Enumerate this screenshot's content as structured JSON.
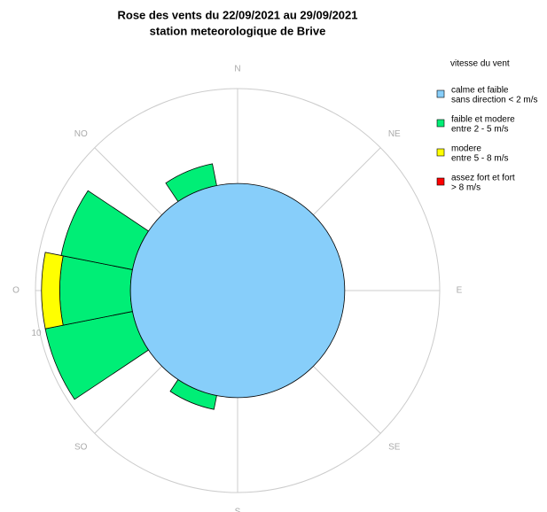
{
  "chart_data": {
    "type": "windrose",
    "title": "Rose des vents du 22/09/2021 au 29/09/2021",
    "subtitle": "station meteorologique de Brive",
    "legend_title": "vitesse du vent",
    "categories": [
      "N",
      null,
      "NE",
      null,
      "E",
      null,
      "SE",
      null,
      "S",
      null,
      "SO",
      null,
      "O",
      null,
      "NO",
      null
    ],
    "calm": {
      "name": [
        "calme et faible",
        "sans direction < 2 m/s"
      ],
      "color": "#87cefa",
      "value": 5.3
    },
    "series": [
      {
        "name": [
          "faible et modere",
          "entre 2 - 5 m/s"
        ],
        "color": "#00ee76",
        "values": [
          0,
          0,
          0,
          0,
          0,
          0,
          0,
          0,
          0,
          0.7,
          0,
          4.4,
          3.5,
          3.6,
          0,
          1.1
        ]
      },
      {
        "name": [
          "modere",
          "entre 5 - 8 m/s"
        ],
        "color": "#ffff00",
        "values": [
          0,
          0,
          0,
          0,
          0,
          0,
          0,
          0,
          0,
          0,
          0,
          0,
          0.9,
          0,
          0,
          0
        ]
      },
      {
        "name": [
          "assez fort et fort",
          "> 8 m/s"
        ],
        "color": "#ff0000",
        "values": [
          0,
          0,
          0,
          0,
          0,
          0,
          0,
          0,
          0,
          0,
          0,
          0,
          0,
          0,
          0,
          0
        ]
      }
    ],
    "rlim": [
      0,
      10
    ],
    "rticks": [
      10
    ],
    "grid": true
  }
}
